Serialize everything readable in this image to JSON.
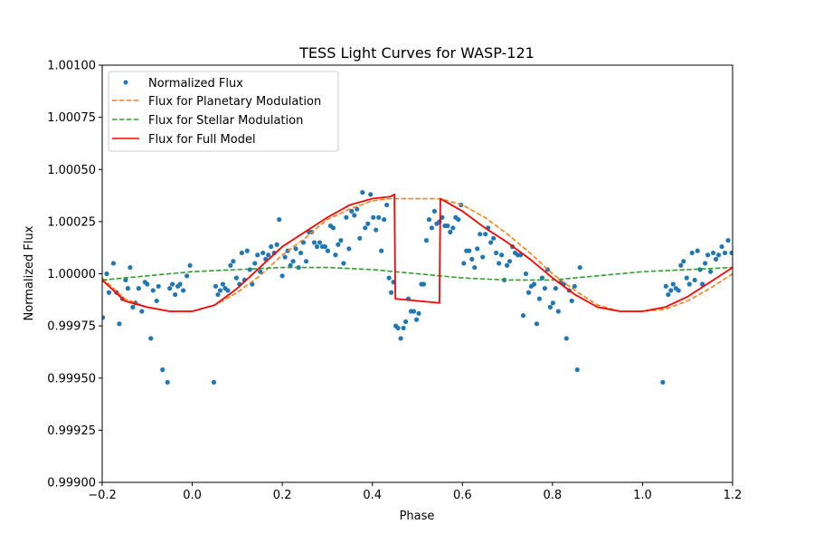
{
  "chart_data": {
    "type": "line",
    "title": "TESS Light Curves for WASP-121",
    "xlabel": "Phase",
    "ylabel": "Normalized Flux",
    "xlim": [
      -0.2,
      1.2
    ],
    "ylim": [
      0.999,
      1.001
    ],
    "xticks": [
      "-0.2",
      "0.0",
      "0.2",
      "0.4",
      "0.6",
      "0.8",
      "1.0",
      "1.2"
    ],
    "yticks": [
      "0.99900",
      "0.99925",
      "0.99950",
      "0.99975",
      "1.00000",
      "1.00025",
      "1.00050",
      "1.00075",
      "1.00100"
    ],
    "grid": false,
    "legend_position": "top-left",
    "series": [
      {
        "name": "Normalized Flux",
        "style": "markers",
        "color": "#1f77b4",
        "points": [
          [
            -0.199,
            0.99979
          ],
          [
            -0.19,
            1.0
          ],
          [
            -0.185,
            0.99991
          ],
          [
            -0.175,
            1.00005
          ],
          [
            -0.168,
            0.99991
          ],
          [
            -0.162,
            0.99976
          ],
          [
            -0.155,
            0.99988
          ],
          [
            -0.148,
            0.99997
          ],
          [
            -0.143,
            0.99993
          ],
          [
            -0.138,
            1.00003
          ],
          [
            -0.132,
            0.99984
          ],
          [
            -0.126,
            0.99986
          ],
          [
            -0.119,
            0.99993
          ],
          [
            -0.112,
            0.99982
          ],
          [
            -0.105,
            0.99996
          ],
          [
            -0.1,
            0.99995
          ],
          [
            -0.092,
            0.99969
          ],
          [
            -0.087,
            0.99992
          ],
          [
            -0.079,
            0.99987
          ],
          [
            -0.075,
            0.99994
          ],
          [
            -0.066,
            0.99954
          ],
          [
            -0.055,
            0.99948
          ],
          [
            -0.05,
            0.99993
          ],
          [
            -0.044,
            0.99995
          ],
          [
            -0.038,
            0.9999
          ],
          [
            -0.032,
            0.99994
          ],
          [
            -0.027,
            0.99995
          ],
          [
            -0.02,
            0.99992
          ],
          [
            -0.012,
            0.99999
          ],
          [
            -0.005,
            1.00004
          ],
          [
            0.048,
            0.99948
          ],
          [
            0.052,
            0.99994
          ],
          [
            0.057,
            0.9999
          ],
          [
            0.062,
            0.99992
          ],
          [
            0.068,
            0.99995
          ],
          [
            0.073,
            0.99993
          ],
          [
            0.079,
            0.99992
          ],
          [
            0.085,
            1.00004
          ],
          [
            0.091,
            1.00006
          ],
          [
            0.098,
            0.99998
          ],
          [
            0.105,
            0.99995
          ],
          [
            0.11,
            1.0001
          ],
          [
            0.116,
            0.99997
          ],
          [
            0.122,
            1.00011
          ],
          [
            0.128,
            1.00002
          ],
          [
            0.133,
            0.99995
          ],
          [
            0.139,
            1.00005
          ],
          [
            0.145,
            1.00009
          ],
          [
            0.151,
            1.00001
          ],
          [
            0.157,
            1.0001
          ],
          [
            0.163,
            1.00007
          ],
          [
            0.169,
            1.00009
          ],
          [
            0.175,
            1.00013
          ],
          [
            0.182,
            1.0001
          ],
          [
            0.188,
            1.00014
          ],
          [
            0.193,
            1.00026
          ],
          [
            0.2,
            0.99999
          ],
          [
            0.206,
            1.00008
          ],
          [
            0.212,
            1.00011
          ],
          [
            0.218,
            1.00004
          ],
          [
            0.224,
            1.00006
          ],
          [
            0.23,
            1.00012
          ],
          [
            0.236,
            1.00003
          ],
          [
            0.241,
            1.0001
          ],
          [
            0.247,
            1.00015
          ],
          [
            0.253,
            1.00006
          ],
          [
            0.259,
            1.0002
          ],
          [
            0.265,
            1.0002
          ],
          [
            0.271,
            1.00015
          ],
          [
            0.277,
            1.00013
          ],
          [
            0.283,
            1.00015
          ],
          [
            0.289,
            1.00013
          ],
          [
            0.295,
            1.00013
          ],
          [
            0.301,
            1.00011
          ],
          [
            0.307,
            1.00023
          ],
          [
            0.313,
            1.00022
          ],
          [
            0.318,
            1.00009
          ],
          [
            0.324,
            1.00014
          ],
          [
            0.33,
            1.00016
          ],
          [
            0.336,
            1.00005
          ],
          [
            0.342,
            1.00027
          ],
          [
            0.348,
            1.00012
          ],
          [
            0.354,
            1.0003
          ],
          [
            0.36,
            1.00028
          ],
          [
            0.366,
            1.00031
          ],
          [
            0.372,
            1.00017
          ],
          [
            0.378,
            1.00039
          ],
          [
            0.384,
            1.00022
          ],
          [
            0.39,
            1.00024
          ],
          [
            0.396,
            1.00038
          ],
          [
            0.402,
            1.00027
          ],
          [
            0.408,
            1.00021
          ],
          [
            0.414,
            1.00027
          ],
          [
            0.42,
            1.00011
          ],
          [
            0.426,
            1.00026
          ],
          [
            0.432,
            1.00033
          ],
          [
            0.437,
            0.99998
          ],
          [
            0.442,
            0.99991
          ],
          [
            0.447,
            0.99996
          ],
          [
            0.452,
            0.99975
          ],
          [
            0.457,
            0.99974
          ],
          [
            0.463,
            0.99969
          ],
          [
            0.469,
            0.99974
          ],
          [
            0.474,
            0.99977
          ],
          [
            0.48,
            0.99988
          ],
          [
            0.486,
            0.99982
          ],
          [
            0.492,
            0.99982
          ],
          [
            0.498,
            0.99978
          ],
          [
            0.503,
            0.99981
          ],
          [
            0.509,
            0.99995
          ],
          [
            0.514,
            0.99995
          ],
          [
            0.52,
            1.00016
          ],
          [
            0.526,
            1.00026
          ],
          [
            0.532,
            1.00022
          ],
          [
            0.538,
            1.0003
          ],
          [
            0.543,
            1.00024
          ],
          [
            0.549,
            1.00025
          ],
          [
            0.555,
            1.00027
          ],
          [
            0.561,
            1.00023
          ],
          [
            0.567,
            1.00023
          ],
          [
            0.573,
            1.0002
          ],
          [
            0.579,
            1.00022
          ],
          [
            0.585,
            1.00027
          ],
          [
            0.591,
            1.00026
          ],
          [
            0.597,
            1.00033
          ],
          [
            0.603,
            1.00005
          ],
          [
            0.609,
            1.00011
          ],
          [
            0.615,
            1.00011
          ],
          [
            0.621,
            1.00007
          ],
          [
            0.627,
            1.00003
          ],
          [
            0.633,
            1.00012
          ],
          [
            0.639,
            1.00019
          ],
          [
            0.645,
            1.00008
          ],
          [
            0.651,
            1.00019
          ],
          [
            0.657,
            1.00022
          ],
          [
            0.663,
            1.00015
          ],
          [
            0.669,
            1.00017
          ],
          [
            0.675,
            1.0001
          ],
          [
            0.681,
            1.00005
          ],
          [
            0.687,
            1.00009
          ],
          [
            0.693,
            0.99997
          ],
          [
            0.699,
            1.00004
          ],
          [
            0.705,
            1.00006
          ],
          [
            0.711,
            1.00013
          ],
          [
            0.717,
            1.0001
          ],
          [
            0.723,
            1.00009
          ],
          [
            0.729,
            1.00009
          ],
          [
            0.735,
            0.9998
          ],
          [
            0.741,
            1.0
          ],
          [
            0.747,
            0.99991
          ],
          [
            0.753,
            0.99994
          ],
          [
            0.759,
            0.99995
          ],
          [
            0.765,
            0.99976
          ],
          [
            0.771,
            0.99988
          ],
          [
            0.777,
            0.99998
          ],
          [
            0.783,
            0.99993
          ],
          [
            0.789,
            1.00002
          ],
          [
            0.795,
            0.99984
          ],
          [
            0.801,
            0.99986
          ],
          [
            0.807,
            0.99993
          ],
          [
            0.813,
            0.99982
          ],
          [
            0.819,
            0.99996
          ],
          [
            0.825,
            0.99995
          ],
          [
            0.831,
            0.99969
          ],
          [
            0.837,
            0.99992
          ],
          [
            0.843,
            0.99987
          ],
          [
            0.849,
            0.99994
          ],
          [
            0.855,
            0.99954
          ],
          [
            0.861,
            1.00003
          ],
          [
            1.045,
            0.99948
          ],
          [
            1.052,
            0.99994
          ],
          [
            1.057,
            0.9999
          ],
          [
            1.063,
            0.99992
          ],
          [
            1.068,
            0.99995
          ],
          [
            1.074,
            0.99993
          ],
          [
            1.08,
            0.99992
          ],
          [
            1.085,
            1.00004
          ],
          [
            1.091,
            1.00006
          ],
          [
            1.098,
            0.99998
          ],
          [
            1.104,
            0.99995
          ],
          [
            1.11,
            1.0001
          ],
          [
            1.116,
            0.99997
          ],
          [
            1.122,
            1.00011
          ],
          [
            1.128,
            1.00002
          ],
          [
            1.133,
            0.99995
          ],
          [
            1.139,
            1.00005
          ],
          [
            1.145,
            1.00009
          ],
          [
            1.151,
            1.00001
          ],
          [
            1.157,
            1.0001
          ],
          [
            1.163,
            1.00007
          ],
          [
            1.169,
            1.00009
          ],
          [
            1.176,
            1.00013
          ],
          [
            1.183,
            1.0001
          ],
          [
            1.19,
            1.00016
          ],
          [
            1.198,
            1.0001
          ]
        ]
      },
      {
        "name": "Flux for Planetary Modulation",
        "style": "dashed",
        "color": "#ff7f0e",
        "points": [
          [
            -0.2,
            0.99998
          ],
          [
            -0.15,
            0.99988
          ],
          [
            -0.1,
            0.99984
          ],
          [
            -0.05,
            0.99982
          ],
          [
            0.0,
            0.99982
          ],
          [
            0.05,
            0.99985
          ],
          [
            0.1,
            0.99991
          ],
          [
            0.15,
            0.99999
          ],
          [
            0.2,
            1.00009
          ],
          [
            0.25,
            1.00017
          ],
          [
            0.3,
            1.00026
          ],
          [
            0.35,
            1.00031
          ],
          [
            0.4,
            1.00035
          ],
          [
            0.44,
            1.00036
          ],
          [
            0.45,
            1.00036
          ],
          [
            0.55,
            1.00036
          ],
          [
            0.6,
            1.00033
          ],
          [
            0.65,
            1.00027
          ],
          [
            0.7,
            1.00019
          ],
          [
            0.75,
            1.0001
          ],
          [
            0.8,
            1.0
          ],
          [
            0.85,
            0.99992
          ],
          [
            0.9,
            0.99985
          ],
          [
            0.95,
            0.99982
          ],
          [
            1.0,
            0.99982
          ],
          [
            1.05,
            0.99983
          ],
          [
            1.1,
            0.99987
          ],
          [
            1.15,
            0.99993
          ],
          [
            1.2,
            1.0
          ]
        ]
      },
      {
        "name": "Flux for Stellar Modulation",
        "style": "dashed",
        "color": "#2ca02c",
        "points": [
          [
            -0.2,
            0.99997
          ],
          [
            -0.1,
            0.99999
          ],
          [
            0.0,
            1.00001
          ],
          [
            0.1,
            1.00002
          ],
          [
            0.2,
            1.00003
          ],
          [
            0.3,
            1.00003
          ],
          [
            0.4,
            1.00002
          ],
          [
            0.5,
            1.0
          ],
          [
            0.6,
            0.99998
          ],
          [
            0.7,
            0.99997
          ],
          [
            0.8,
            0.99997
          ],
          [
            0.9,
            0.99999
          ],
          [
            1.0,
            1.00001
          ],
          [
            1.1,
            1.00002
          ],
          [
            1.2,
            1.00003
          ]
        ]
      },
      {
        "name": "Flux for Full Model",
        "style": "solid",
        "color": "#ff0000",
        "points": [
          [
            -0.2,
            0.99997
          ],
          [
            -0.15,
            0.99987
          ],
          [
            -0.1,
            0.99984
          ],
          [
            -0.05,
            0.99982
          ],
          [
            0.0,
            0.99982
          ],
          [
            0.05,
            0.99985
          ],
          [
            0.1,
            0.99993
          ],
          [
            0.15,
            1.00003
          ],
          [
            0.2,
            1.00013
          ],
          [
            0.25,
            1.0002
          ],
          [
            0.3,
            1.00027
          ],
          [
            0.35,
            1.00033
          ],
          [
            0.4,
            1.00036
          ],
          [
            0.44,
            1.00037
          ],
          [
            0.449,
            1.00038
          ],
          [
            0.451,
            0.99988
          ],
          [
            0.549,
            0.99986
          ],
          [
            0.551,
            1.00036
          ],
          [
            0.6,
            1.0003
          ],
          [
            0.65,
            1.00022
          ],
          [
            0.7,
            1.00015
          ],
          [
            0.75,
            1.00007
          ],
          [
            0.8,
            0.99998
          ],
          [
            0.85,
            0.9999
          ],
          [
            0.9,
            0.99984
          ],
          [
            0.95,
            0.99982
          ],
          [
            1.0,
            0.99982
          ],
          [
            1.05,
            0.99984
          ],
          [
            1.1,
            0.99989
          ],
          [
            1.15,
            0.99996
          ],
          [
            1.2,
            1.00003
          ]
        ]
      }
    ]
  }
}
